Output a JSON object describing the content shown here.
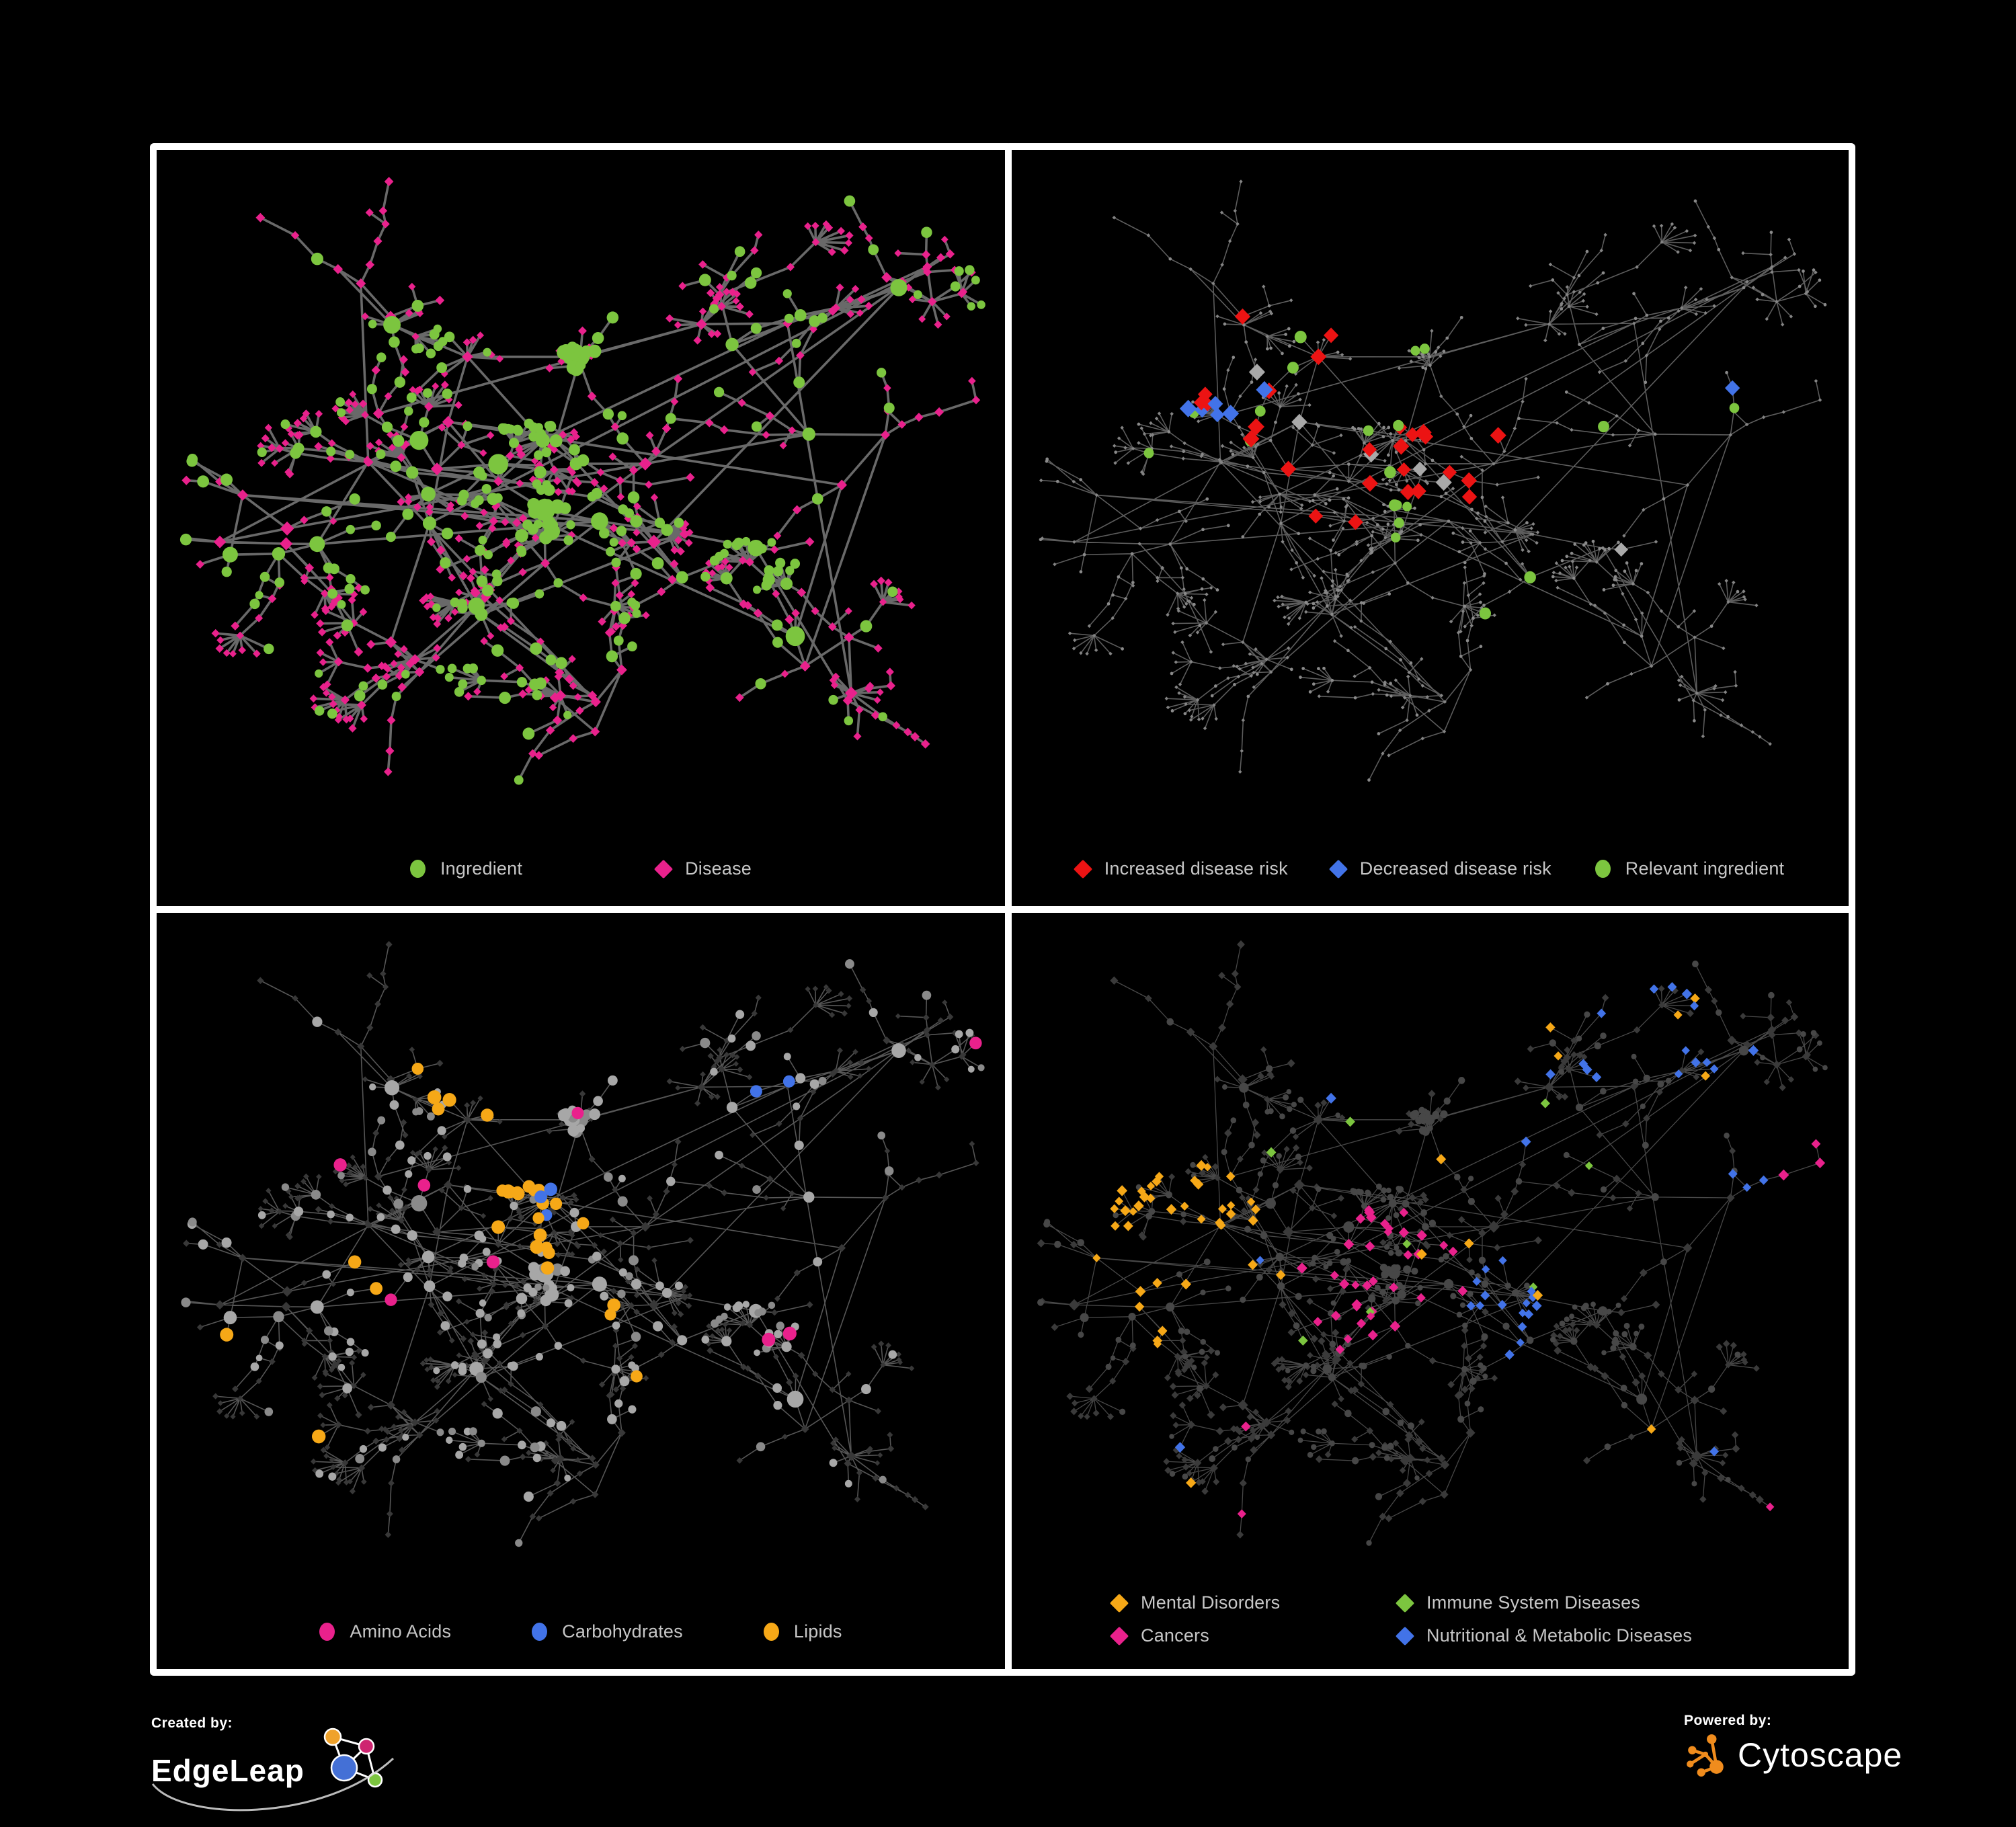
{
  "branding": {
    "created_by_label": "Created by:",
    "created_by_name": "EdgeLeap",
    "powered_by_label": "Powered by:",
    "powered_by_name": "Cytoscape"
  },
  "colors": {
    "background": "#000000",
    "panel_border": "#FFFFFF",
    "legend_text": "#C6C6C6",
    "green": "#7CC53F",
    "pink": "#E9218C",
    "red": "#EC1313",
    "blue": "#4273E8",
    "orange": "#F6A817",
    "gray_highlight": "#A9A9A9",
    "node_gray": "#A7A7A7",
    "node_dark": "#3A3A3A",
    "tiny_node_gray": "#8A8A8A",
    "edge_dark": "#6F6F6F",
    "edge_light": "#9D9D9D",
    "cytoscape_orange": "#F08C1D",
    "edgeleap_logo_orange": "#EFA22B",
    "edgeleap_logo_pink": "#CE2470",
    "edgeleap_logo_blue": "#4470D6",
    "edgeleap_logo_green": "#7CC53F"
  },
  "panels": [
    {
      "id": "ingredient-disease-network",
      "legend": [
        {
          "label": "Ingredient",
          "shape": "circle",
          "color": "#7CC53F"
        },
        {
          "label": "Disease",
          "shape": "diamond",
          "color": "#E9218C"
        }
      ]
    },
    {
      "id": "disease-risk-network",
      "legend": [
        {
          "label": "Increased disease risk",
          "shape": "diamond",
          "color": "#EC1313"
        },
        {
          "label": "Decreased disease risk",
          "shape": "diamond",
          "color": "#4273E8"
        },
        {
          "label": "Relevant ingredient",
          "shape": "circle",
          "color": "#7CC53F"
        }
      ]
    },
    {
      "id": "nutrient-class-network",
      "legend": [
        {
          "label": "Amino Acids",
          "shape": "circle",
          "color": "#E9218C"
        },
        {
          "label": "Carbohydrates",
          "shape": "circle",
          "color": "#4273E8"
        },
        {
          "label": "Lipids",
          "shape": "circle",
          "color": "#F6A817"
        }
      ]
    },
    {
      "id": "disease-category-network",
      "legend": [
        {
          "label": "Mental Disorders",
          "shape": "diamond",
          "color": "#F6A817"
        },
        {
          "label": "Immune System Diseases",
          "shape": "diamond",
          "color": "#7CC53F"
        },
        {
          "label": "Cancers",
          "shape": "diamond",
          "color": "#E9218C"
        },
        {
          "label": "Nutritional & Metabolic Diseases",
          "shape": "diamond",
          "color": "#4273E8"
        }
      ]
    }
  ],
  "network": {
    "seed": 9
  }
}
